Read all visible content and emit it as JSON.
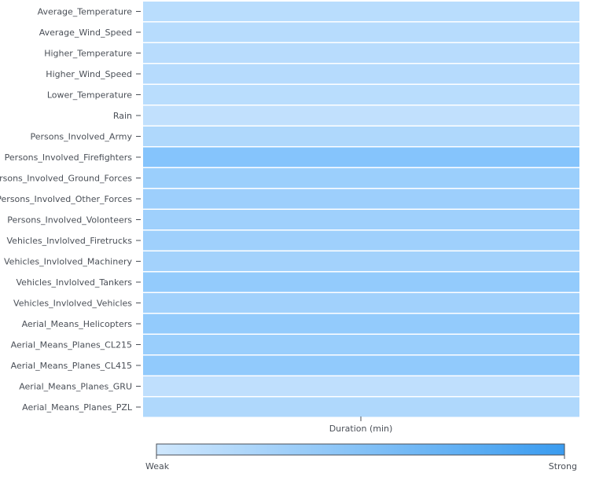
{
  "chart_data": {
    "type": "heatmap",
    "title": "",
    "xlabel": "Duration (min)",
    "ylabel": "",
    "columns": [
      "Duration (min)"
    ],
    "rows": [
      "Average_Temperature",
      "Average_Wind_Speed",
      "Higher_Temperature",
      "Higher_Wind_Speed",
      "Lower_Temperature",
      "Rain",
      "Persons_Involved_Army",
      "Persons_Involved_Firefighters",
      "Persons_Involved_Ground_Forces",
      "Persons_Involved_Other_Forces",
      "Persons_Involved_Volonteers",
      "Vehicles_Invlolved_Firetrucks",
      "Vehicles_Invlolved_Machinery",
      "Vehicles_Invlolved_Tankers",
      "Vehicles_Invlolved_Vehicles",
      "Aerial_Means_Helicopters",
      "Aerial_Means_Planes_CL215",
      "Aerial_Means_Planes_CL415",
      "Aerial_Means_Planes_GRU",
      "Aerial_Means_Planes_PZL"
    ],
    "values": [
      0.2,
      0.22,
      0.21,
      0.23,
      0.2,
      0.12,
      0.3,
      0.72,
      0.5,
      0.48,
      0.46,
      0.46,
      0.42,
      0.58,
      0.44,
      0.58,
      0.52,
      0.6,
      0.14,
      0.3
    ],
    "legend": {
      "position": "bottom",
      "low_label": "Weak",
      "high_label": "Strong",
      "low_color": "#cfe7fd",
      "high_color": "#3a9cf0"
    },
    "cell_color_low": "#cde6fd",
    "cell_color_high": "#69b7fb"
  }
}
